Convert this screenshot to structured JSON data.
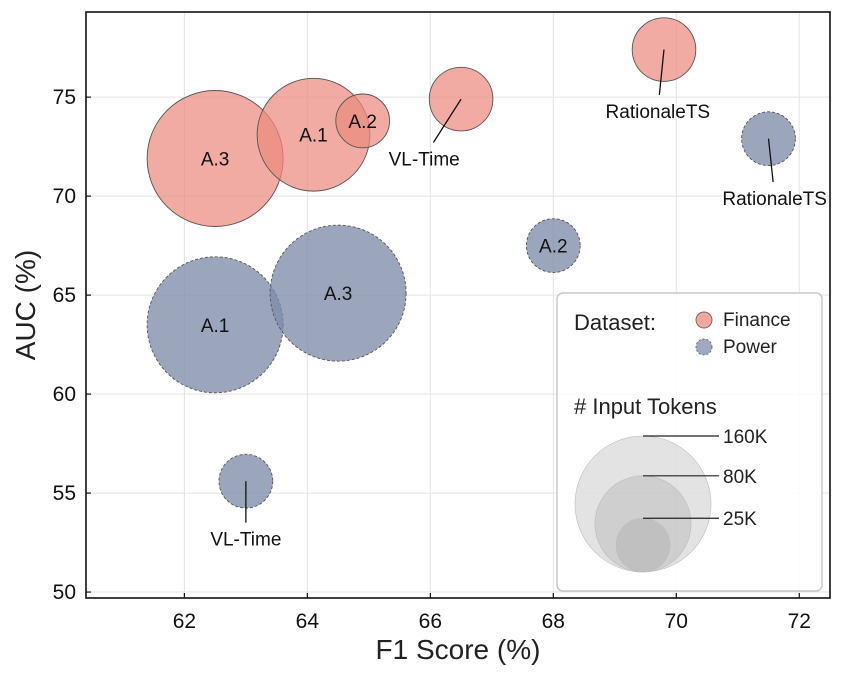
{
  "chart_data": {
    "type": "scatter",
    "subtype": "bubble",
    "xlabel": "F1 Score (%)",
    "ylabel": "AUC (%)",
    "xlim": [
      60.4,
      72.5
    ],
    "ylim": [
      49.7,
      79.3
    ],
    "xticks": [
      62,
      64,
      66,
      68,
      70,
      72
    ],
    "yticks": [
      50,
      55,
      60,
      65,
      70,
      75
    ],
    "grid": true,
    "colors": {
      "Finance": "#ec8a7e",
      "Power": "#7f8dab"
    },
    "size_scale": {
      "reference_tokens": 160,
      "reference_units": "K"
    },
    "points": [
      {
        "series": "Power",
        "label": "A.1",
        "x": 62.5,
        "y": 63.5,
        "tokens_k": 160
      },
      {
        "series": "Power",
        "label": "A.3",
        "x": 64.5,
        "y": 65.1,
        "tokens_k": 160
      },
      {
        "series": "Power",
        "label": "A.2",
        "x": 68.0,
        "y": 67.5,
        "tokens_k": 25
      },
      {
        "series": "Power",
        "label": "",
        "x": 63.0,
        "y": 55.6,
        "tokens_k": 25
      },
      {
        "series": "Power",
        "label": "",
        "x": 71.5,
        "y": 72.9,
        "tokens_k": 25
      },
      {
        "series": "Finance",
        "label": "A.3",
        "x": 62.5,
        "y": 71.9,
        "tokens_k": 160
      },
      {
        "series": "Finance",
        "label": "A.1",
        "x": 64.1,
        "y": 73.1,
        "tokens_k": 110
      },
      {
        "series": "Finance",
        "label": "A.2",
        "x": 64.9,
        "y": 73.8,
        "tokens_k": 25
      },
      {
        "series": "Finance",
        "label": "",
        "x": 66.5,
        "y": 74.9,
        "tokens_k": 35
      },
      {
        "series": "Finance",
        "label": "",
        "x": 69.8,
        "y": 77.4,
        "tokens_k": 35
      }
    ],
    "annotations": [
      {
        "text": "VL-Time",
        "point_x": 63.0,
        "point_y": 55.6,
        "text_x": 63.0,
        "text_y": 52.7
      },
      {
        "text": "RationaleTS",
        "point_x": 71.5,
        "point_y": 72.9,
        "text_x": 71.6,
        "text_y": 69.9
      },
      {
        "text": "VL-Time",
        "point_x": 66.5,
        "point_y": 74.9,
        "text_x": 65.9,
        "text_y": 71.9
      },
      {
        "text": "RationaleTS",
        "point_x": 69.8,
        "point_y": 77.4,
        "text_x": 69.7,
        "text_y": 74.3
      }
    ],
    "legend": {
      "placement": "bottom-right",
      "dataset_title": "Dataset:",
      "entries": [
        {
          "name": "Finance",
          "color": "#ec8a7e"
        },
        {
          "name": "Power",
          "color": "#7f8dab"
        }
      ],
      "size_title": "# Input Tokens",
      "size_entries": [
        {
          "label": "160K",
          "tokens_k": 160
        },
        {
          "label": "80K",
          "tokens_k": 80
        },
        {
          "label": "25K",
          "tokens_k": 25
        }
      ]
    }
  }
}
